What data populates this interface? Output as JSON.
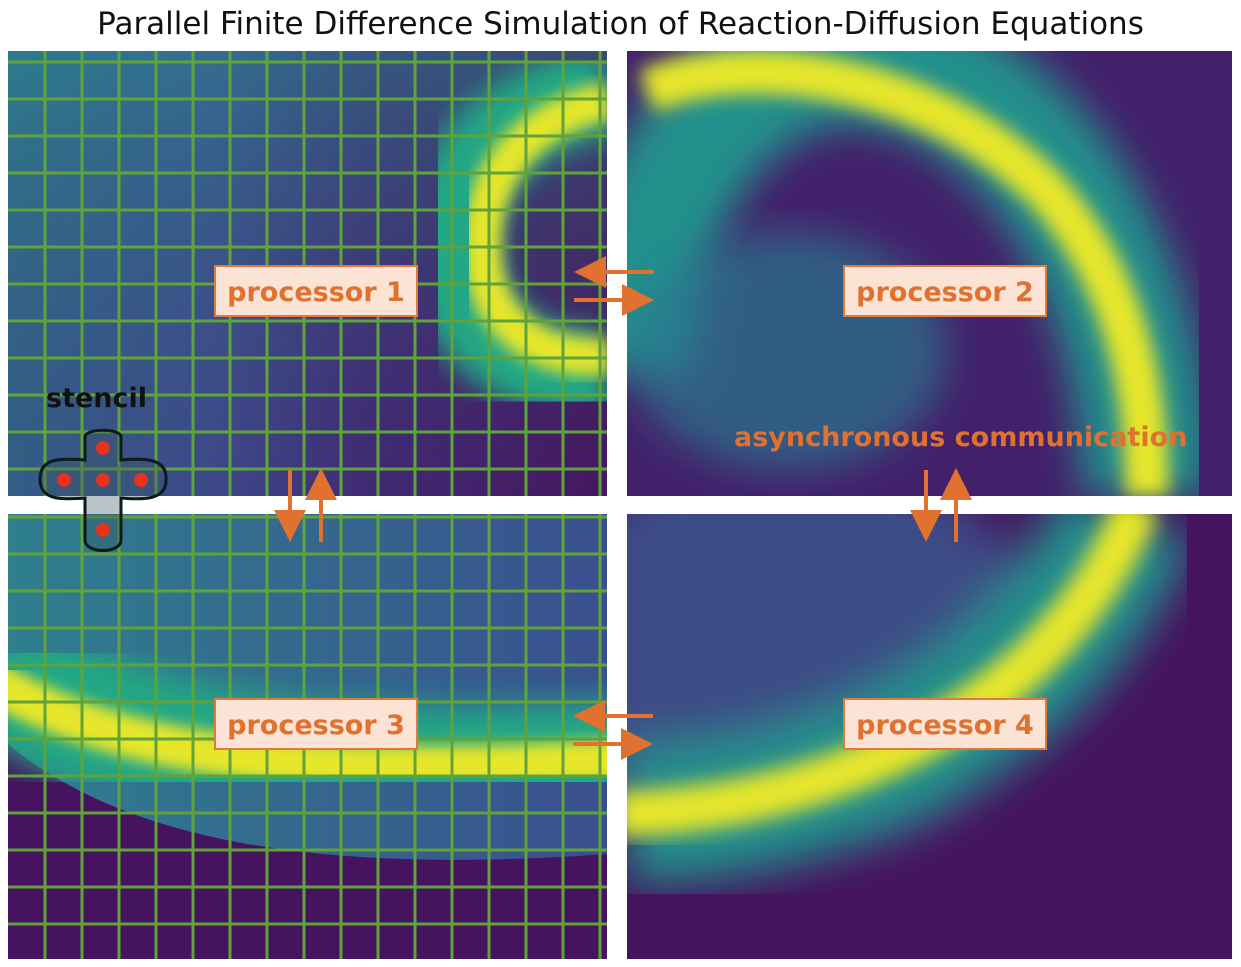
{
  "title": "Parallel Finite Difference Simulation of Reaction-Diffusion Equations",
  "processors": [
    {
      "label": "processor 1"
    },
    {
      "label": "processor 2"
    },
    {
      "label": "processor 3"
    },
    {
      "label": "processor 4"
    }
  ],
  "communication_label": "asynchronous communication",
  "stencil_label": "stencil",
  "colors": {
    "accent": "#e0712f",
    "label_fill": "#fbe3d6",
    "grid": "#6aa63a",
    "stencil_dot": "#e8321e",
    "field_low": "#46135f",
    "field_mid": "#2a788e",
    "field_high": "#e6e62a"
  }
}
